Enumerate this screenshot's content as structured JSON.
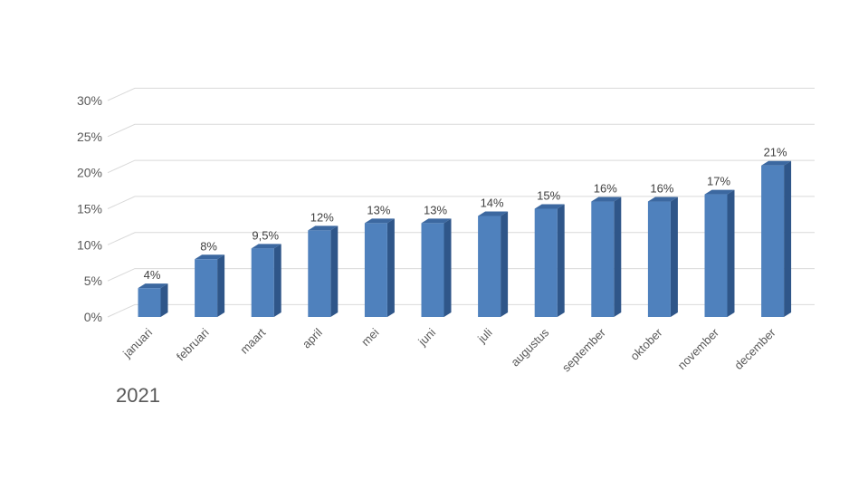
{
  "chart_data": {
    "type": "bar",
    "title": "",
    "xlabel": "",
    "ylabel": "",
    "categories": [
      "januari",
      "februari",
      "maart",
      "april",
      "mei",
      "juni",
      "juli",
      "augustus",
      "september",
      "oktober",
      "november",
      "december"
    ],
    "values": [
      4,
      8,
      9.5,
      12,
      13,
      13,
      14,
      15,
      16,
      16,
      17,
      21
    ],
    "data_labels": [
      "4%",
      "8%",
      "9,5%",
      "12%",
      "13%",
      "13%",
      "14%",
      "15%",
      "16%",
      "16%",
      "17%",
      "21%"
    ],
    "yticks": [
      0,
      5,
      10,
      15,
      20,
      25,
      30
    ],
    "ytick_labels": [
      "0%",
      "5%",
      "10%",
      "15%",
      "20%",
      "25%",
      "30%"
    ],
    "ylim": [
      0,
      30
    ],
    "grid": true,
    "style": "3d-column",
    "colors": {
      "bar_front": "#4f81bd",
      "bar_side": "#2f5689",
      "bar_top": "#3c68a0",
      "grid": "#d9d9d9"
    }
  },
  "caption": "2021"
}
